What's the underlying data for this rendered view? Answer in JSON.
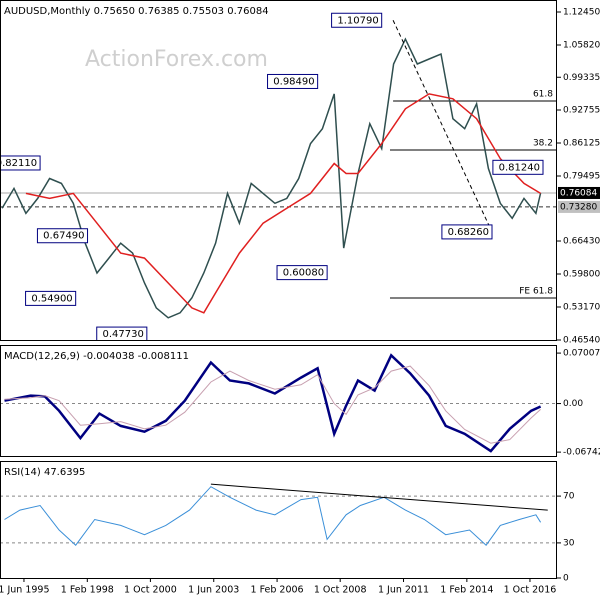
{
  "chart_data": [
    {
      "type": "line",
      "title": "AUDUSD,Monthly  0.75650 0.76385 0.75503 0.76084",
      "watermark": "ActionForex.com",
      "xlim": [
        1994.41,
        2017.89
      ],
      "ylim": [
        0.4654,
        1.1486
      ],
      "yticks": [
        {
          "value": 1.1245,
          "label": "1.12450"
        },
        {
          "value": 1.0582,
          "label": "1.05820"
        },
        0.99335,
        0.92755,
        0.86125,
        0.79495,
        {
          "value": 0.6643,
          "label": "0.66430"
        },
        {
          "value": 0.598,
          "label": "0.59800"
        },
        {
          "value": 0.5317,
          "label": "0.53170"
        },
        {
          "value": 0.4654,
          "label": "0.46540"
        }
      ],
      "series": [
        {
          "color": "#2f4f4f",
          "x": [
            1994.5,
            1995.0,
            1995.5,
            1996.0,
            1996.5,
            1997.0,
            1997.5,
            1998.0,
            1998.5,
            1999.0,
            1999.5,
            2000.0,
            2000.5,
            2001.0,
            2001.5,
            2002.0,
            2002.5,
            2003.0,
            2003.5,
            2004.0,
            2004.5,
            2005.0,
            2005.5,
            2006.0,
            2006.5,
            2007.0,
            2007.5,
            2008.0,
            2008.5,
            2008.9,
            2009.5,
            2010.0,
            2010.5,
            2011.0,
            2011.5,
            2012.0,
            2012.5,
            2013.0,
            2013.5,
            2014.0,
            2014.5,
            2015.0,
            2015.5,
            2016.0,
            2016.5,
            2017.0,
            2017.2
          ],
          "values": [
            0.73,
            0.77,
            0.72,
            0.75,
            0.79,
            0.78,
            0.74,
            0.66,
            0.6,
            0.63,
            0.66,
            0.64,
            0.58,
            0.53,
            0.51,
            0.52,
            0.55,
            0.6,
            0.66,
            0.76,
            0.7,
            0.78,
            0.76,
            0.74,
            0.75,
            0.79,
            0.86,
            0.89,
            0.96,
            0.65,
            0.8,
            0.9,
            0.85,
            1.02,
            1.07,
            1.02,
            1.03,
            1.04,
            0.91,
            0.89,
            0.94,
            0.81,
            0.74,
            0.71,
            0.75,
            0.72,
            0.76084
          ]
        },
        {
          "color": "#e02020",
          "x": [
            1995.5,
            1996.5,
            1997.5,
            1998.5,
            1999.5,
            2000.5,
            2001.5,
            2002.5,
            2003.0,
            2003.5,
            2004.5,
            2005.5,
            2006.5,
            2007.5,
            2008.5,
            2009.0,
            2009.5,
            2010.5,
            2011.5,
            2012.5,
            2013.5,
            2014.5,
            2015.5,
            2016.5,
            2017.2
          ],
          "values": [
            0.76,
            0.75,
            0.76,
            0.7,
            0.64,
            0.63,
            0.58,
            0.53,
            0.52,
            0.56,
            0.64,
            0.7,
            0.73,
            0.76,
            0.82,
            0.8,
            0.8,
            0.86,
            0.93,
            0.96,
            0.95,
            0.91,
            0.83,
            0.78,
            0.76
          ]
        }
      ],
      "trendline": {
        "x": [
          2010.98,
          2015.15
        ],
        "values": [
          1.1079,
          0.6826
        ]
      },
      "levels": [
        {
          "label": "61.8",
          "value": 0.9456,
          "x": 2010.98
        },
        {
          "label": "38.2",
          "value": 0.8472,
          "x": 2010.85
        },
        {
          "label": "FE 61.8",
          "value": 0.5497,
          "x": 2010.85
        }
      ],
      "lines": [
        {
          "value": 0.76084,
          "label": "0.76084",
          "style": "current"
        },
        {
          "value": 0.7328,
          "label": "0.73280",
          "style": "level"
        }
      ],
      "annotations": [
        {
          "label": "1.10790",
          "value": 1.1079,
          "x": 2010.5
        },
        {
          "label": "0.98490",
          "value": 0.9849,
          "x": 2007.8
        },
        {
          "label": "0.81240",
          "value": 0.8124,
          "x": 2017.3
        },
        {
          "label": "0.68260",
          "value": 0.6826,
          "x": 2015.15
        },
        {
          "label": "0.60080",
          "value": 0.6008,
          "x": 2008.2
        },
        {
          "label": "0.54900",
          "value": 0.549,
          "x": 1997.6
        },
        {
          "label": "0.47730",
          "value": 0.4773,
          "x": 2000.6
        },
        {
          "label": "0.67490",
          "value": 0.6749,
          "x": 1998.1
        },
        {
          "label": "0.82110",
          "value": 0.8211,
          "x": 1996.1
        }
      ]
    },
    {
      "type": "line",
      "title": "MACD(12,26,9) -0.004038 -0.008111",
      "xlim": [
        1994.41,
        2017.89
      ],
      "ylim": [
        -0.0728,
        0.0813
      ],
      "yticks": [
        0.070071,
        {
          "value": 0,
          "label": "0.00"
        },
        -0.067423
      ],
      "levels": [
        0
      ],
      "series": [
        {
          "color": "#000080",
          "width": 2.5,
          "x": [
            1994.6,
            1995.7,
            1996.3,
            1996.9,
            1997.8,
            1998.6,
            1999.5,
            2000.5,
            2001.4,
            2002.2,
            2003.3,
            2004.1,
            2004.9,
            2006.0,
            2007.1,
            2007.8,
            2008.5,
            2009.0,
            2009.5,
            2010.2,
            2010.9,
            2011.7,
            2012.5,
            2013.2,
            2014.0,
            2015.1,
            2015.9,
            2016.8,
            2017.2
          ],
          "values": [
            0.004,
            0.011,
            0.01,
            -0.01,
            -0.048,
            -0.014,
            -0.031,
            -0.039,
            -0.024,
            0.004,
            0.057,
            0.032,
            0.028,
            0.014,
            0.036,
            0.049,
            -0.042,
            -0.003,
            0.032,
            0.018,
            0.067,
            0.042,
            0.011,
            -0.031,
            -0.042,
            -0.066,
            -0.035,
            -0.01,
            -0.004038
          ]
        },
        {
          "color": "#c8a0b0",
          "width": 1,
          "x": [
            1994.6,
            1995.7,
            1996.3,
            1996.9,
            1997.8,
            1998.6,
            1999.5,
            2000.5,
            2001.4,
            2002.2,
            2003.3,
            2004.1,
            2004.9,
            2006.0,
            2007.1,
            2007.8,
            2008.5,
            2009.0,
            2009.5,
            2010.2,
            2010.9,
            2011.7,
            2012.5,
            2013.2,
            2014.0,
            2015.1,
            2015.9,
            2016.8,
            2017.2
          ],
          "values": [
            0.006,
            0.008,
            0.011,
            0.004,
            -0.03,
            -0.028,
            -0.025,
            -0.035,
            -0.03,
            -0.012,
            0.03,
            0.045,
            0.032,
            0.02,
            0.026,
            0.04,
            0.0,
            -0.015,
            0.012,
            0.022,
            0.045,
            0.052,
            0.025,
            -0.01,
            -0.036,
            -0.055,
            -0.05,
            -0.02,
            -0.008111
          ]
        }
      ]
    },
    {
      "type": "line",
      "title": "RSI(14) 47.6395",
      "xlim": [
        1994.41,
        2017.89
      ],
      "ylim": [
        0,
        100
      ],
      "yticks": [
        70,
        30,
        0
      ],
      "levels": [
        70,
        30
      ],
      "xticks": [
        {
          "value": 1995.42,
          "label": "1 Jun 1995"
        },
        {
          "value": 1998.09,
          "label": "1 Feb 1998"
        },
        {
          "value": 2000.75,
          "label": "1 Oct 2000"
        },
        {
          "value": 2003.42,
          "label": "1 Jun 2003"
        },
        {
          "value": 2006.09,
          "label": "1 Feb 2006"
        },
        {
          "value": 2008.75,
          "label": "1 Oct 2008"
        },
        {
          "value": 2011.42,
          "label": "1 Jun 2011"
        },
        {
          "value": 2014.09,
          "label": "1 Feb 2014"
        },
        {
          "value": 2016.75,
          "label": "1 Oct 2016"
        }
      ],
      "series": [
        {
          "color": "#3a8fd8",
          "width": 1,
          "x": [
            1994.6,
            1995.25,
            1996.1,
            1996.9,
            1997.6,
            1998.4,
            1999.5,
            2000.5,
            2001.4,
            2002.4,
            2003.3,
            2004.1,
            2005.2,
            2006.0,
            2007.1,
            2007.8,
            2008.2,
            2009.0,
            2009.6,
            2010.6,
            2011.5,
            2012.3,
            2013.2,
            2014.2,
            2014.9,
            2015.5,
            2016.3,
            2017.0,
            2017.2
          ],
          "values": [
            50,
            58,
            62,
            41,
            28,
            50,
            45,
            37,
            45,
            58,
            78,
            69,
            58,
            54,
            67,
            69,
            33,
            54,
            62,
            69,
            58,
            50,
            37,
            41,
            28,
            45,
            50,
            54,
            47.6395
          ]
        }
      ],
      "trendline": {
        "x": [
          2003.3,
          2017.5
        ],
        "values": [
          80.2,
          58
        ]
      }
    }
  ]
}
